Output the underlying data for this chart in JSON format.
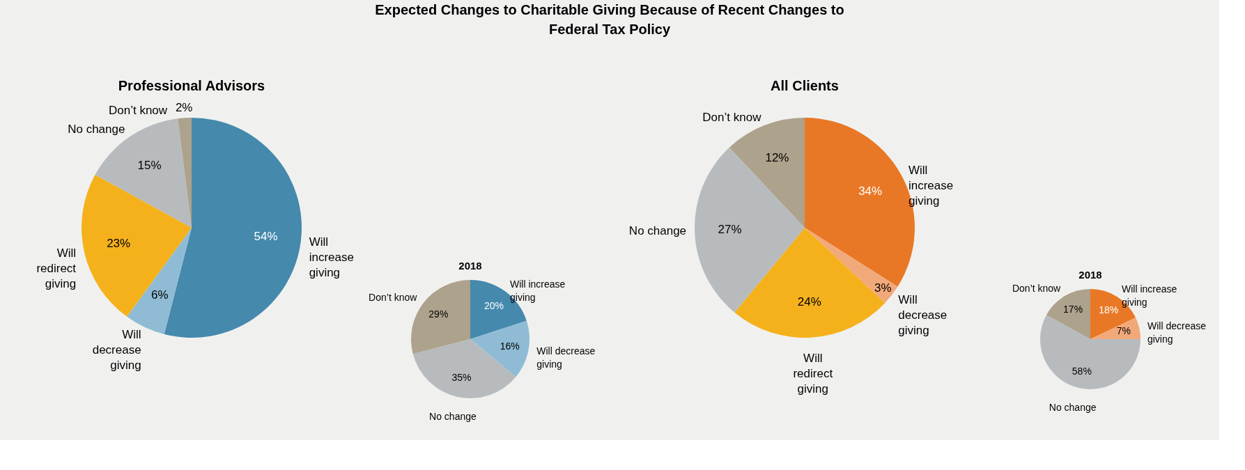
{
  "chart_data": [
    {
      "type": "pie",
      "title": "Expected Changes to Charitable Giving Because of Recent Changes to Federal Tax Policy",
      "subtitle": "Professional Advisors",
      "categories": [
        "Will increase giving",
        "Will decrease giving",
        "Will redirect giving",
        "No change",
        "Don’t know"
      ],
      "values": [
        54,
        6,
        23,
        15,
        2
      ],
      "value_labels": [
        "54%",
        "6%",
        "23%",
        "15%",
        "2%"
      ],
      "colors": [
        "#4589ad",
        "#8fbcd4",
        "#f5b11c",
        "#b8bbbd",
        "#ada28c"
      ]
    },
    {
      "type": "pie",
      "title": "2018",
      "categories": [
        "Will increase giving",
        "Will decrease giving",
        "No change",
        "Don’t know"
      ],
      "values": [
        20,
        16,
        35,
        29
      ],
      "value_labels": [
        "20%",
        "16%",
        "35%",
        "29%"
      ],
      "colors": [
        "#4589ad",
        "#8fbcd4",
        "#b8bbbd",
        "#ada28c"
      ]
    },
    {
      "type": "pie",
      "title": "All Clients",
      "categories": [
        "Will increase giving",
        "Will decrease giving",
        "Will redirect giving",
        "No change",
        "Don’t know"
      ],
      "values": [
        34,
        3,
        24,
        27,
        12
      ],
      "value_labels": [
        "34%",
        "3%",
        "24%",
        "27%",
        "12%"
      ],
      "colors": [
        "#e97826",
        "#f2a97a",
        "#f5b11c",
        "#b8bbbd",
        "#ada28c"
      ]
    },
    {
      "type": "pie",
      "title": "2018",
      "categories": [
        "Will increase giving",
        "Will decrease giving",
        "No change",
        "Don’t know"
      ],
      "values": [
        18,
        7,
        58,
        17
      ],
      "value_labels": [
        "18%",
        "7%",
        "58%",
        "17%"
      ],
      "colors": [
        "#e97826",
        "#f2a97a",
        "#b8bbbd",
        "#ada28c"
      ]
    }
  ]
}
